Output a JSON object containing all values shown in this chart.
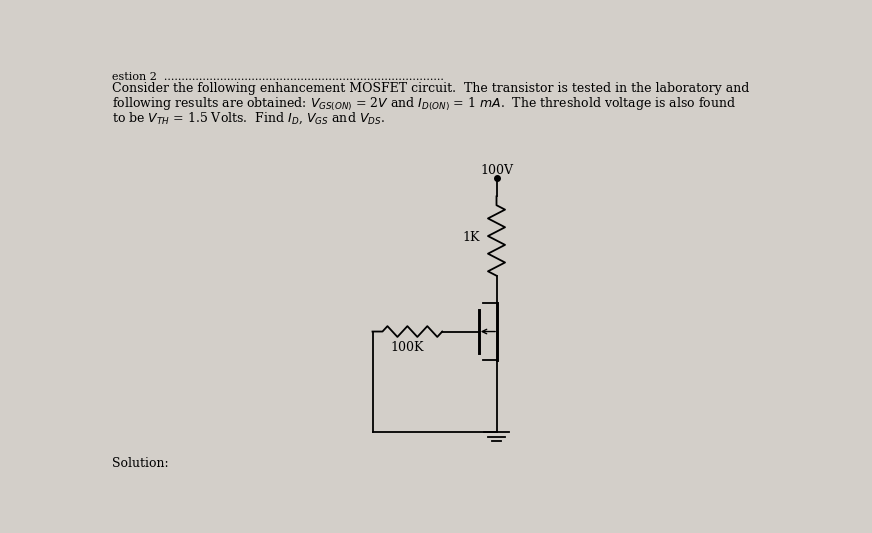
{
  "bg_color": "#d3cfc9",
  "text_color": "#000000",
  "circuit": {
    "vdd_label": "100V",
    "rd_label": "1K",
    "rg_label": "100K"
  },
  "line1": "Consider the following enhancement MOSFET circuit.  The transistor is tested in the laboratory and",
  "line2": "following results are obtained: $V_{GS(ON)}$ = 2$V$ and $I_{D(ON)}$ = 1 $mA$.  The threshold voltage is also found",
  "line3": "to be $V_{TH}$ = 1.5 Volts.  Find $I_D$, $V_{GS}$ and $V_{DS}$.",
  "top_label": "estion 2",
  "solution": "Solution:"
}
